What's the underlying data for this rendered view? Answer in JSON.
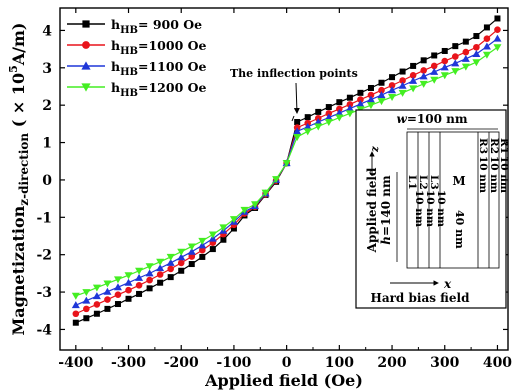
{
  "chart_data": {
    "type": "line",
    "xlabel": "Applied field (Oe)",
    "ylabel": "Magnetization",
    "ylabel_sub": "z-direction",
    "ylabel_unit_prefix": "( × 10",
    "ylabel_unit_exp": "5",
    "ylabel_unit_suffix": "A/m)",
    "xlim": [
      -430,
      420
    ],
    "ylim": [
      -4.55,
      4.6
    ],
    "x_ticks": [
      -400,
      -300,
      -200,
      -100,
      0,
      100,
      200,
      300,
      400
    ],
    "y_ticks": [
      -4,
      -3,
      -2,
      -1,
      0,
      1,
      2,
      3,
      4
    ],
    "x": [
      -400,
      -380,
      -360,
      -340,
      -320,
      -300,
      -280,
      -260,
      -240,
      -220,
      -200,
      -180,
      -160,
      -140,
      -120,
      -100,
      -80,
      -60,
      -40,
      -20,
      0,
      20,
      40,
      60,
      80,
      100,
      120,
      140,
      160,
      180,
      200,
      220,
      240,
      260,
      280,
      300,
      320,
      340,
      360,
      380,
      400
    ],
    "series": [
      {
        "name_main": "h",
        "name_sub": "HB",
        "name_value": "=  900 Oe",
        "color": "#000000",
        "marker": "square",
        "values": [
          -3.82,
          -3.7,
          -3.58,
          -3.45,
          -3.32,
          -3.18,
          -3.05,
          -2.9,
          -2.75,
          -2.6,
          -2.43,
          -2.25,
          -2.06,
          -1.85,
          -1.6,
          -1.3,
          -0.95,
          -0.75,
          -0.4,
          -0.05,
          0.45,
          1.55,
          1.68,
          1.82,
          1.95,
          2.08,
          2.2,
          2.33,
          2.46,
          2.6,
          2.75,
          2.9,
          3.05,
          3.2,
          3.33,
          3.45,
          3.58,
          3.7,
          3.85,
          4.08,
          4.32
        ]
      },
      {
        "name_main": "h",
        "name_sub": "HB",
        "name_value": "=1000 Oe",
        "color": "#e8141b",
        "marker": "circle",
        "values": [
          -3.58,
          -3.45,
          -3.33,
          -3.2,
          -3.07,
          -2.95,
          -2.82,
          -2.68,
          -2.53,
          -2.38,
          -2.22,
          -2.05,
          -1.88,
          -1.68,
          -1.45,
          -1.2,
          -0.9,
          -0.72,
          -0.38,
          -0.02,
          0.45,
          1.4,
          1.52,
          1.65,
          1.78,
          1.9,
          2.02,
          2.15,
          2.27,
          2.4,
          2.53,
          2.66,
          2.8,
          2.93,
          3.05,
          3.18,
          3.3,
          3.42,
          3.55,
          3.78,
          4.02
        ]
      },
      {
        "name_main": "h",
        "name_sub": "HB",
        "name_value": "=1100 Oe",
        "color": "#1f37d8",
        "marker": "triangle-up",
        "values": [
          -3.35,
          -3.23,
          -3.11,
          -2.99,
          -2.87,
          -2.75,
          -2.62,
          -2.5,
          -2.36,
          -2.22,
          -2.07,
          -1.92,
          -1.75,
          -1.57,
          -1.36,
          -1.12,
          -0.85,
          -0.7,
          -0.36,
          0.0,
          0.45,
          1.3,
          1.42,
          1.55,
          1.67,
          1.79,
          1.91,
          2.03,
          2.15,
          2.27,
          2.4,
          2.52,
          2.65,
          2.77,
          2.89,
          3.01,
          3.12,
          3.24,
          3.37,
          3.57,
          3.78
        ]
      },
      {
        "name_main": "h",
        "name_sub": "HB",
        "name_value": "=1200 Oe",
        "color": "#44ee22",
        "marker": "triangle-down",
        "values": [
          -3.1,
          -3.0,
          -2.88,
          -2.77,
          -2.66,
          -2.55,
          -2.43,
          -2.31,
          -2.19,
          -2.06,
          -1.92,
          -1.78,
          -1.63,
          -1.46,
          -1.27,
          -1.05,
          -0.8,
          -0.65,
          -0.34,
          0.02,
          0.45,
          1.15,
          1.3,
          1.43,
          1.55,
          1.67,
          1.78,
          1.89,
          2.0,
          2.11,
          2.22,
          2.33,
          2.45,
          2.57,
          2.68,
          2.8,
          2.91,
          3.03,
          3.15,
          3.35,
          3.55
        ]
      }
    ],
    "legend_position": "top-left",
    "annotation": "The inflection points",
    "inset": {
      "width_label": "w=100 nm",
      "height_label": "h=140 nm",
      "applied_field_label": "Applied field",
      "z_label": "z",
      "x_label": "x",
      "hard_bias_label": "Hard bias field",
      "layers_left": [
        {
          "name": "L1",
          "thickness": "10 nm"
        },
        {
          "name": "L2",
          "thickness": "10 nm"
        },
        {
          "name": "L3",
          "thickness": "10 nm"
        }
      ],
      "middle": {
        "name": "M",
        "thickness": "40 nm"
      },
      "layers_right": [
        {
          "name": "R3",
          "thickness": "10 nm"
        },
        {
          "name": "R2",
          "thickness": "10 nm"
        },
        {
          "name": "R1",
          "thickness": "10 nm"
        }
      ]
    }
  }
}
